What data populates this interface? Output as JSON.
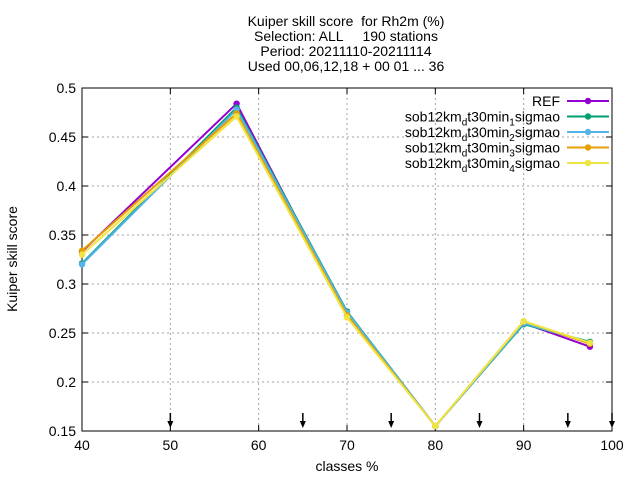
{
  "chart_data": {
    "type": "line",
    "title_lines": [
      "Kuiper skill score  for Rh2m (%)",
      "Selection: ALL     190 stations",
      "Period: 20211110-20211114",
      "Used 00,06,12,18 + 00 01 ... 36"
    ],
    "xlabel": "classes %",
    "ylabel": "Kuiper skill score",
    "xlim": [
      40,
      100
    ],
    "ylim": [
      0.15,
      0.5
    ],
    "x_ticks": [
      40,
      50,
      60,
      70,
      80,
      90,
      100
    ],
    "x_tick_labels": [
      "40",
      "50",
      "60",
      "70",
      "80",
      "90",
      "100"
    ],
    "y_ticks": [
      0.15,
      0.2,
      0.25,
      0.3,
      0.35,
      0.4,
      0.45,
      0.5
    ],
    "y_tick_labels": [
      "0.15",
      "0.2",
      "0.25",
      "0.3",
      "0.35",
      "0.4",
      "0.45",
      "0.5"
    ],
    "grid": true,
    "legend_position": "top-right",
    "class_boundary_markers": [
      50,
      65,
      75,
      85,
      95,
      100
    ],
    "x": [
      40,
      57.5,
      70,
      80,
      90,
      97.5
    ],
    "series": [
      {
        "name": "REF",
        "legend_parts": [
          [
            "REF",
            ""
          ]
        ],
        "color": "#9400d3",
        "values": [
          0.333,
          0.484,
          0.268,
          0.155,
          0.26,
          0.236
        ]
      },
      {
        "name": "sob12km_dt30min_1sigmao",
        "legend_parts": [
          [
            "sob12km",
            ""
          ],
          [
            "d",
            "sub"
          ],
          [
            "t30min",
            ""
          ],
          [
            "1",
            "sub"
          ],
          [
            "sigmao",
            ""
          ]
        ],
        "color": "#009e73",
        "values": [
          0.321,
          0.48,
          0.272,
          0.155,
          0.259,
          0.241
        ]
      },
      {
        "name": "sob12km_dt30min_2sigmao",
        "legend_parts": [
          [
            "sob12km",
            ""
          ],
          [
            "d",
            "sub"
          ],
          [
            "t30min",
            ""
          ],
          [
            "2",
            "sub"
          ],
          [
            "sigmao",
            ""
          ]
        ],
        "color": "#56b4e9",
        "values": [
          0.32,
          0.478,
          0.271,
          0.155,
          0.26,
          0.24
        ]
      },
      {
        "name": "sob12km_dt30min_3sigmao",
        "legend_parts": [
          [
            "sob12km",
            ""
          ],
          [
            "d",
            "sub"
          ],
          [
            "t30min",
            ""
          ],
          [
            "3",
            "sub"
          ],
          [
            "sigmao",
            ""
          ]
        ],
        "color": "#e69f00",
        "values": [
          0.334,
          0.474,
          0.268,
          0.155,
          0.262,
          0.239
        ]
      },
      {
        "name": "sob12km_dt30min_4sigmao",
        "legend_parts": [
          [
            "sob12km",
            ""
          ],
          [
            "d",
            "sub"
          ],
          [
            "t30min",
            ""
          ],
          [
            "4",
            "sub"
          ],
          [
            "sigmao",
            ""
          ]
        ],
        "color": "#f0e442",
        "values": [
          0.33,
          0.471,
          0.266,
          0.155,
          0.262,
          0.24
        ]
      }
    ]
  }
}
